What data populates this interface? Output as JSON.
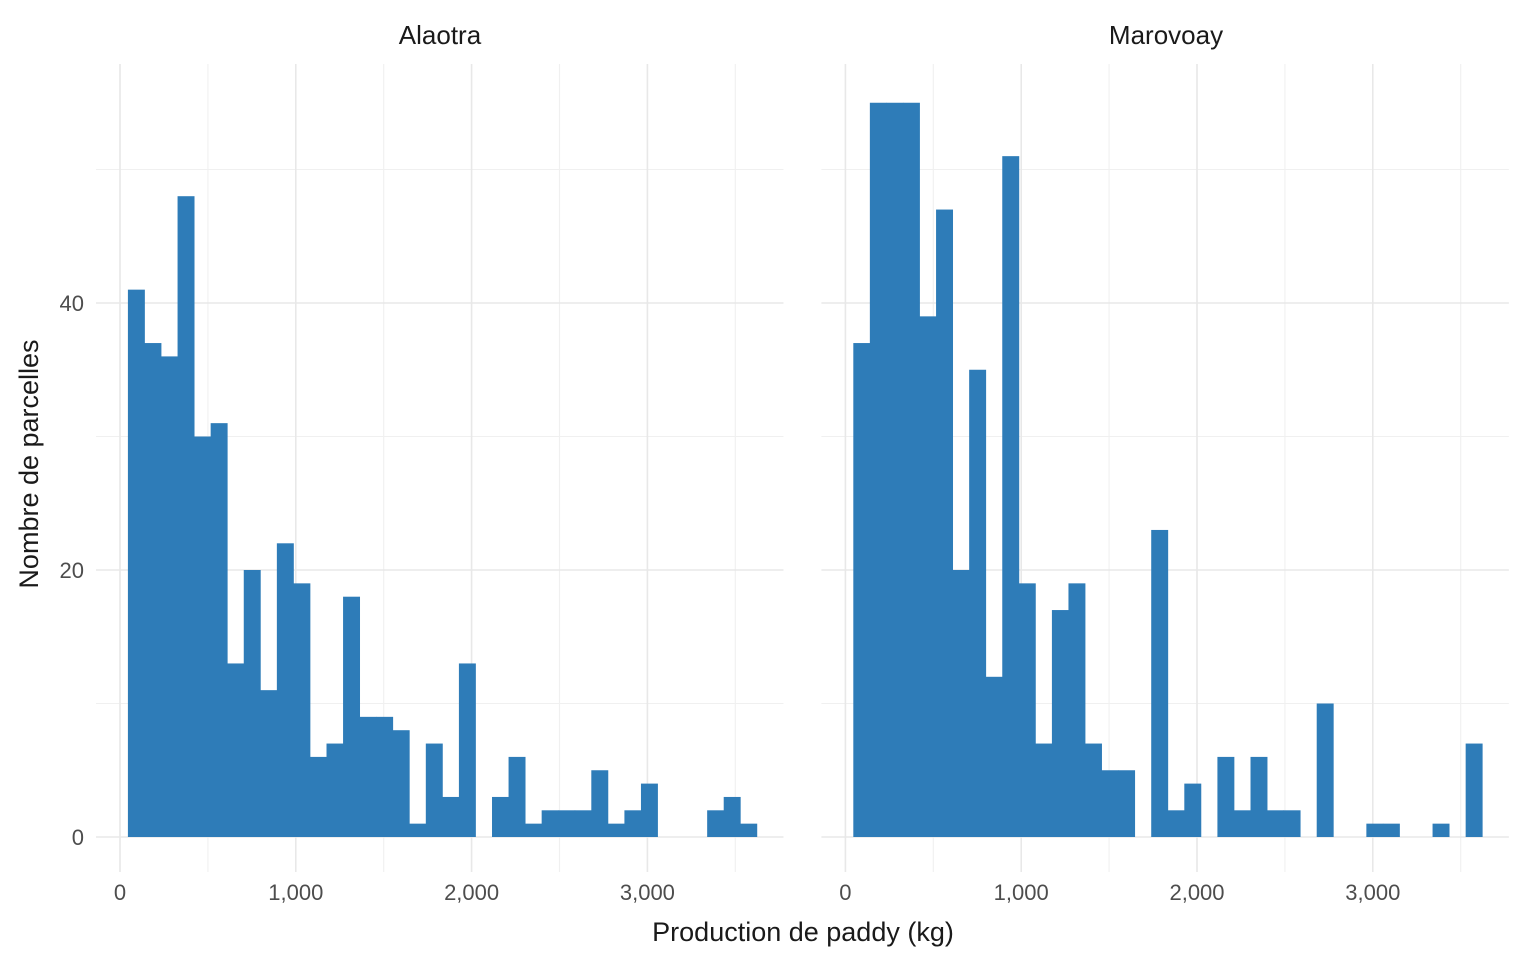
{
  "chart_data": {
    "type": "bar",
    "subtype": "faceted-histogram",
    "title": "",
    "xlabel": "Production de paddy (kg)",
    "ylabel": "Nombre de parcelles",
    "facets": [
      {
        "name": "Alaotra",
        "counts": [
          41,
          37,
          36,
          48,
          30,
          31,
          13,
          20,
          11,
          22,
          19,
          6,
          7,
          18,
          9,
          9,
          8,
          1,
          7,
          3,
          13,
          0,
          3,
          6,
          1,
          2,
          2,
          2,
          5,
          1,
          2,
          4,
          0,
          0,
          0,
          2,
          3,
          1
        ]
      },
      {
        "name": "Marovoay",
        "counts": [
          37,
          55,
          55,
          55,
          39,
          47,
          20,
          35,
          12,
          51,
          19,
          7,
          17,
          19,
          7,
          5,
          5,
          0,
          23,
          2,
          4,
          0,
          6,
          2,
          6,
          2,
          2,
          0,
          10,
          0,
          0,
          1,
          1,
          0,
          0,
          1,
          0,
          7
        ]
      }
    ],
    "bin_width_kg": 94,
    "first_bin_start_kg": 45,
    "x_ticks": [
      {
        "value": 0,
        "label": "0"
      },
      {
        "value": 1000,
        "label": "1,000"
      },
      {
        "value": 2000,
        "label": "2,000"
      },
      {
        "value": 3000,
        "label": "3,000"
      }
    ],
    "x_minor_ticks": [
      500,
      1500,
      2500,
      3500
    ],
    "y_ticks": [
      {
        "value": 0,
        "label": "0"
      },
      {
        "value": 20,
        "label": "20"
      },
      {
        "value": 40,
        "label": "40"
      }
    ],
    "y_minor_ticks": [
      10,
      30,
      50
    ],
    "xlim": [
      0,
      3700
    ],
    "ylim": [
      0,
      57.75
    ],
    "grid": true,
    "legend_position": "none",
    "colors": {
      "bar": "#2e7cb8",
      "grid_major": "#e8e8e8",
      "grid_minor": "#f0f0f0",
      "axis_text": "#4d4d4d",
      "title_text": "#1a1a1a",
      "background": "#ffffff"
    }
  }
}
